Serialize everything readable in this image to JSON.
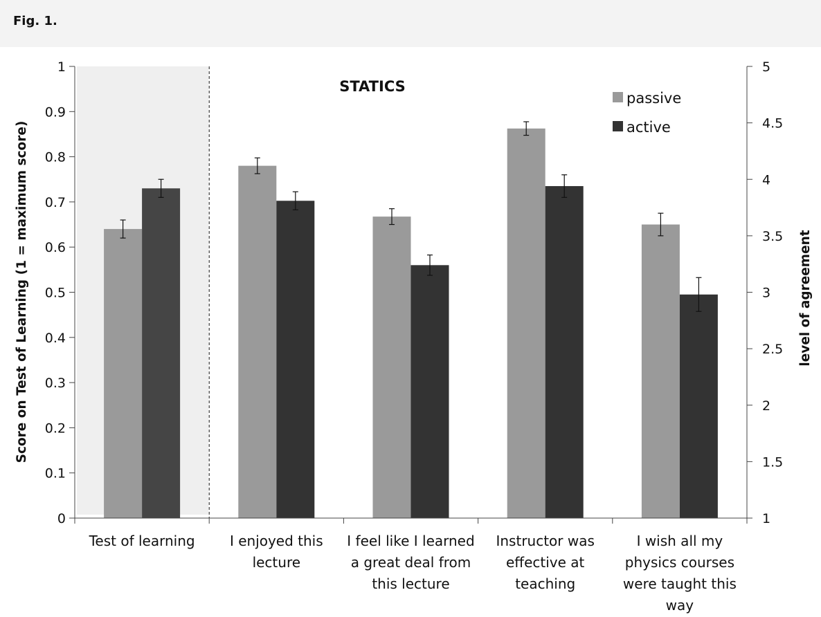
{
  "figure_label": "Fig. 1.",
  "colors": {
    "passive": "#9a9a9a",
    "active": "#333333",
    "test_active": "#454545",
    "shade": "#efefef",
    "axis": "#444444"
  },
  "chart_data": {
    "type": "bar",
    "title": "STATICS",
    "categories": [
      {
        "lines": [
          "Test of learning"
        ]
      },
      {
        "lines": [
          "I enjoyed this",
          "lecture"
        ]
      },
      {
        "lines": [
          "I feel like I learned",
          "a great deal from",
          "this lecture"
        ]
      },
      {
        "lines": [
          "Instructor was",
          "effective at",
          "teaching"
        ]
      },
      {
        "lines": [
          "I wish all my",
          "physics courses",
          "were taught this",
          "way"
        ]
      }
    ],
    "series": [
      {
        "name": "passive",
        "values": [
          0.64,
          4.12,
          3.67,
          4.45,
          3.6
        ],
        "errors": [
          0.02,
          0.07,
          0.07,
          0.06,
          0.1
        ]
      },
      {
        "name": "active",
        "values": [
          0.73,
          3.81,
          3.24,
          3.94,
          2.98
        ],
        "errors": [
          0.02,
          0.08,
          0.09,
          0.1,
          0.15
        ]
      }
    ],
    "axis_assignment": [
      "left",
      "right",
      "right",
      "right",
      "right"
    ],
    "ylabel_left": "Score on Test of Learning  (1 = maximum score)",
    "ylabel_right": "level of agreement",
    "ylim_left": [
      0,
      1
    ],
    "ylim_right": [
      1,
      5
    ],
    "yticks_left": [
      "0",
      "0.1",
      "0.2",
      "0.3",
      "0.4",
      "0.5",
      "0.6",
      "0.7",
      "0.8",
      "0.9",
      "1"
    ],
    "yticks_right": [
      "1",
      "1.5",
      "2",
      "2.5",
      "3",
      "3.5",
      "4",
      "4.5",
      "5"
    ],
    "legend": [
      "passive",
      "active"
    ],
    "legend_position": "top-right",
    "grid": false
  }
}
